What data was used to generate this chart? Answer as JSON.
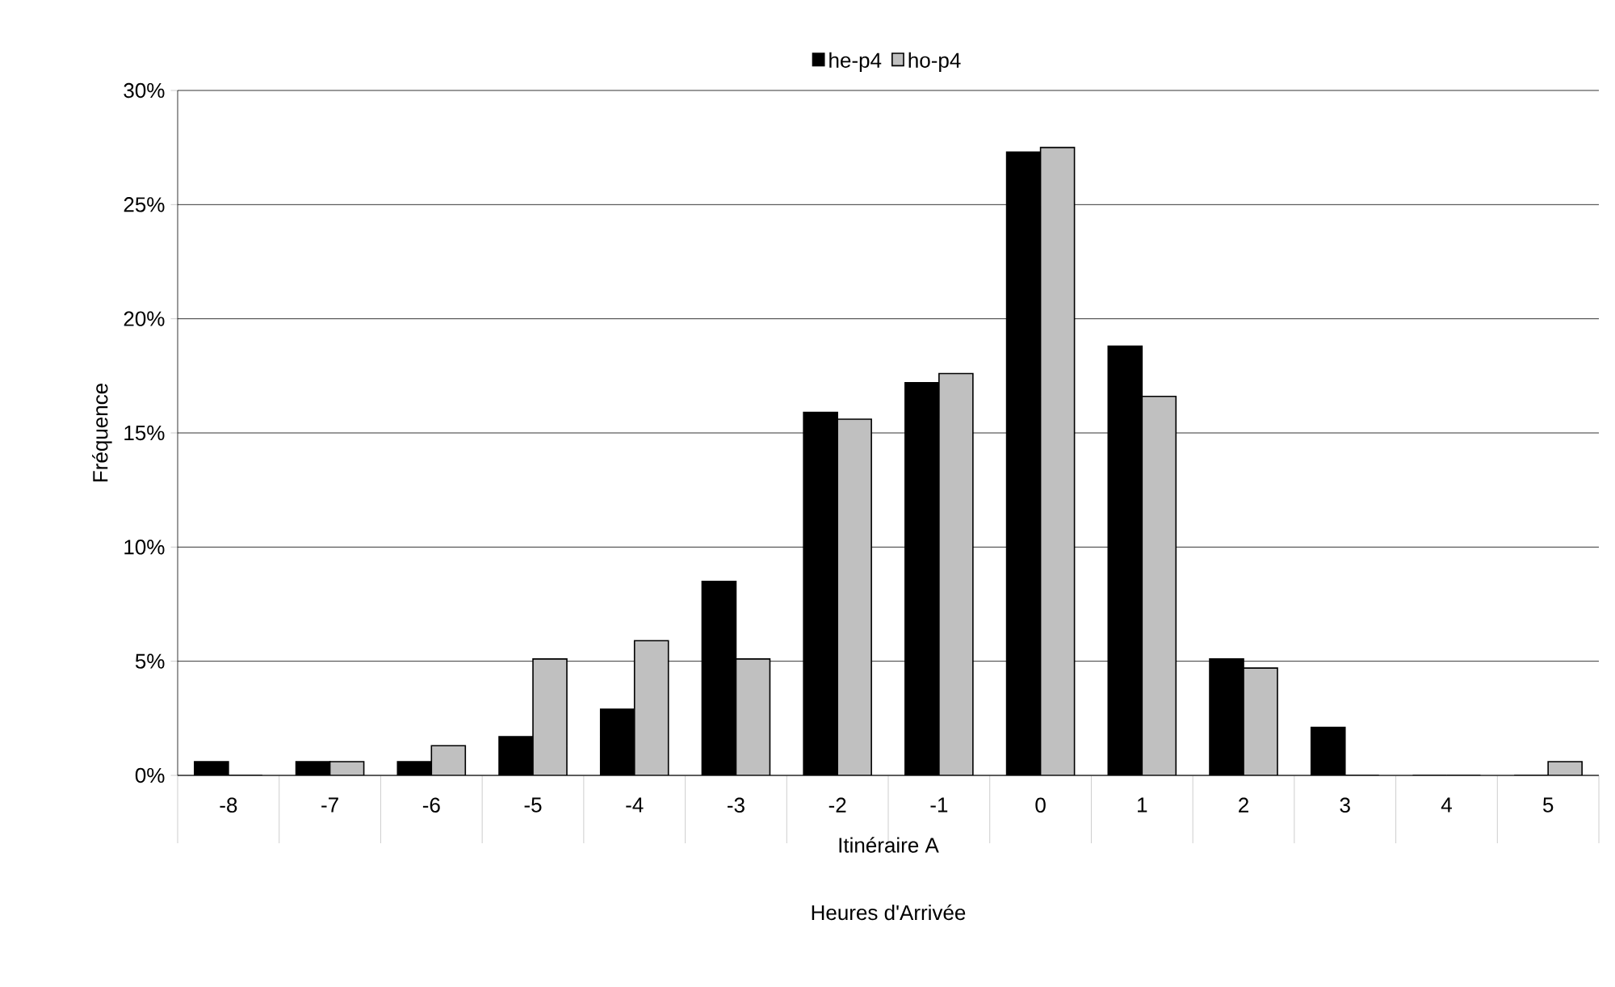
{
  "chart_data": {
    "type": "bar",
    "xlabel": "Heures d'Arrivée",
    "ylabel": "Fréquence",
    "annotations": [
      "Itinéraire A"
    ],
    "categories": [
      "-8",
      "-7",
      "-6",
      "-5",
      "-4",
      "-3",
      "-2",
      "-1",
      "0",
      "1",
      "2",
      "3",
      "4",
      "5"
    ],
    "series": [
      {
        "name": "he-p4",
        "color": "#000000",
        "values": [
          0.6,
          0.6,
          0.6,
          1.7,
          2.9,
          8.5,
          15.9,
          17.2,
          27.3,
          18.8,
          5.1,
          2.1,
          0,
          0
        ]
      },
      {
        "name": "ho-p4",
        "color": "#c0c0c0",
        "values": [
          0,
          0.6,
          1.3,
          5.1,
          5.9,
          5.1,
          15.6,
          17.6,
          27.5,
          16.6,
          4.7,
          0,
          0,
          0.6
        ]
      }
    ],
    "ylim": [
      0,
      30
    ],
    "yticks": [
      {
        "value": 0,
        "label": "0%"
      },
      {
        "value": 5,
        "label": "5%"
      },
      {
        "value": 10,
        "label": "10%"
      },
      {
        "value": 15,
        "label": "15%"
      },
      {
        "value": 20,
        "label": "20%"
      },
      {
        "value": 25,
        "label": "25%"
      },
      {
        "value": 30,
        "label": "30%"
      }
    ],
    "grid": "y",
    "legend": "top"
  }
}
